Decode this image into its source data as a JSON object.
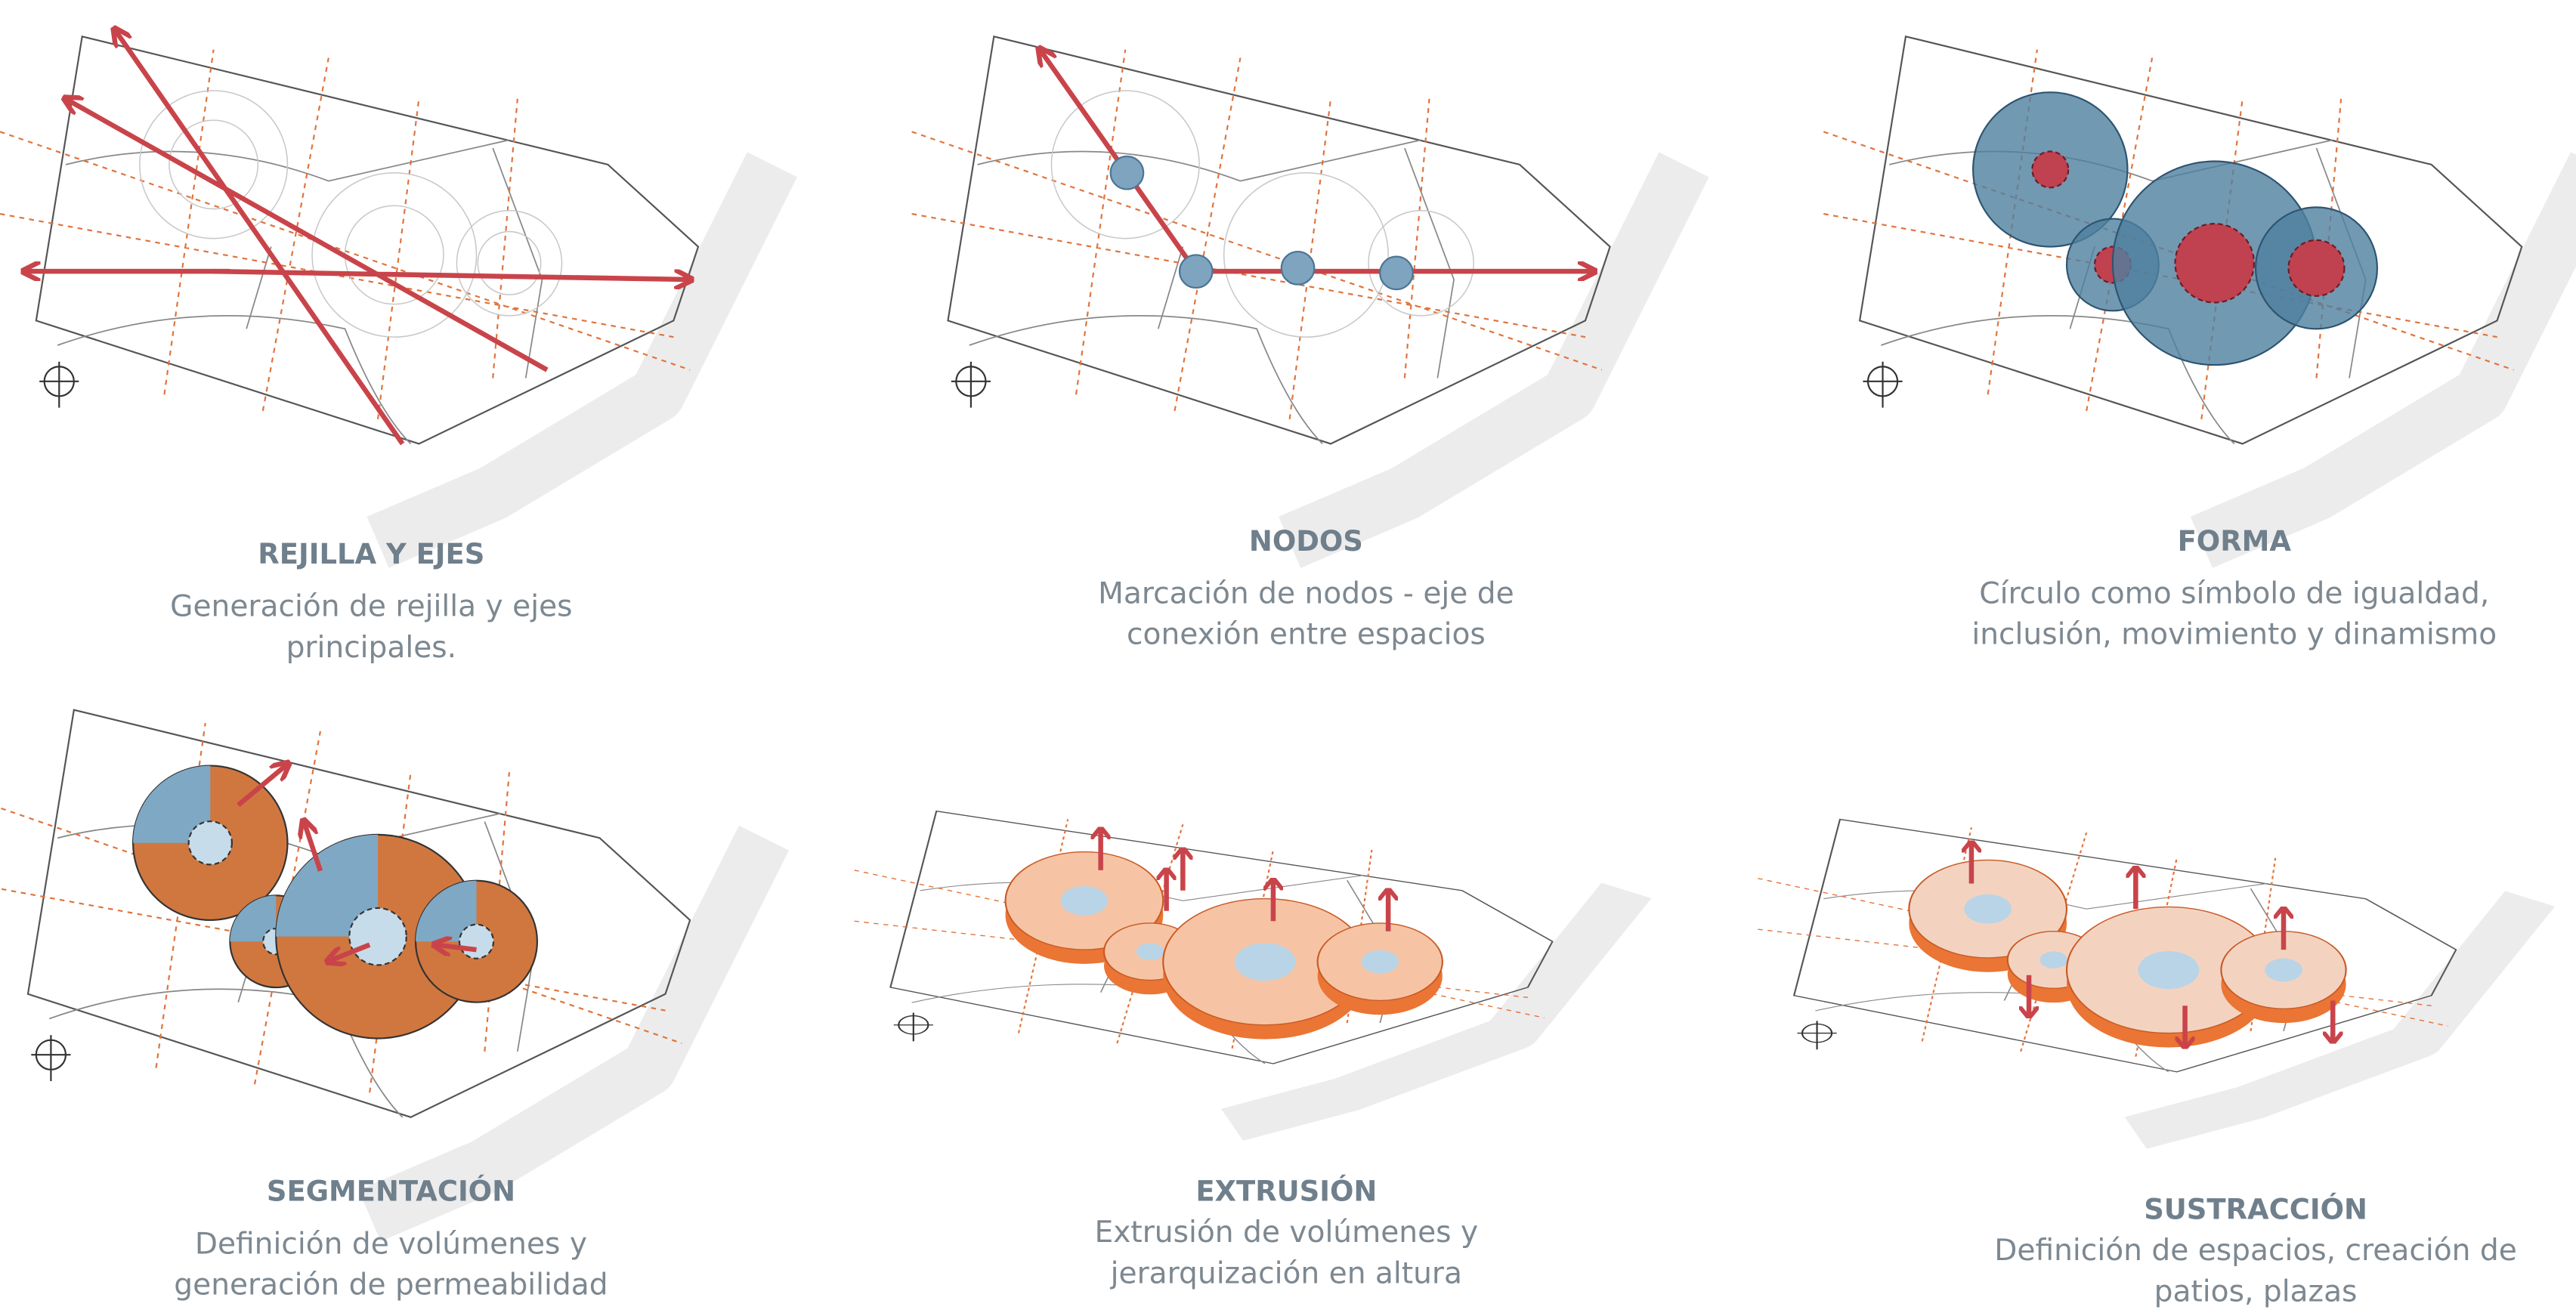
{
  "panels": [
    {
      "title": "REJILLA Y EJES",
      "lines": [
        "Generación de rejilla y ejes",
        "principales."
      ]
    },
    {
      "title": "NODOS",
      "lines": [
        "Marcación de nodos - eje de",
        "conexión entre espacios"
      ]
    },
    {
      "title": "FORMA",
      "lines": [
        "Círculo como símbolo de igualdad,",
        "inclusión, movimiento y dinamismo"
      ]
    },
    {
      "title": "SEGMENTACIÓN",
      "lines": [
        "Definición de volúmenes y",
        "generación de permeabilidad"
      ]
    },
    {
      "title": "EXTRUSIÓN",
      "lines": [
        "Extrusión de volúmenes y",
        "jerarquización en altura"
      ]
    },
    {
      "title": "SUSTRACCIÓN",
      "lines": [
        "Definición de espacios, creación de",
        "patios, plazas"
      ]
    }
  ]
}
